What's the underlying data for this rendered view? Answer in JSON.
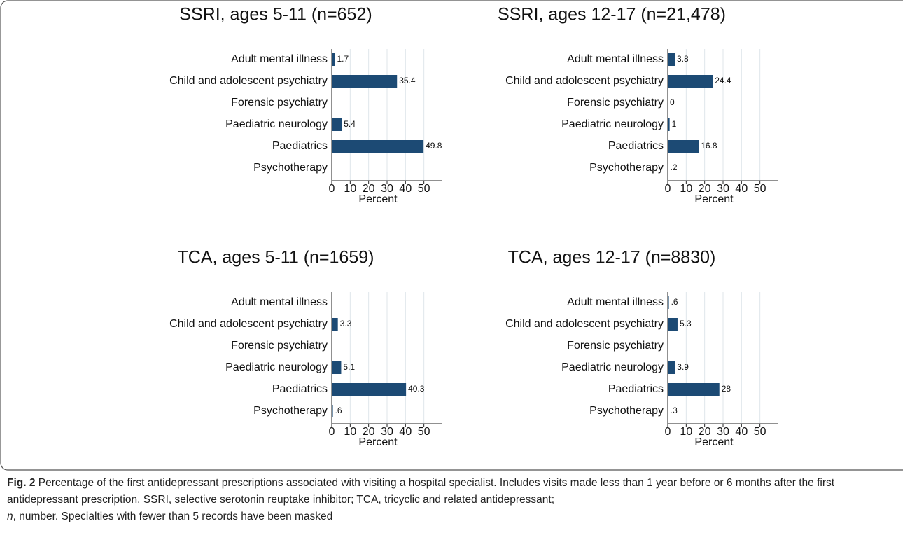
{
  "chart_data": [
    {
      "type": "bar",
      "orientation": "horizontal",
      "title": "SSRI, ages 5-11 (n=652)",
      "categories": [
        "Adult mental illness",
        "Child and adolescent psychiatry",
        "Forensic psychiatry",
        "Paediatric neurology",
        "Paediatrics",
        "Psychotherapy"
      ],
      "values": [
        1.7,
        35.4,
        null,
        5.4,
        49.8,
        null
      ],
      "value_labels": [
        "1.7",
        "35.4",
        null,
        "5.4",
        "49.8",
        null
      ],
      "color": "#1c4a74",
      "xlim": [
        0,
        60
      ],
      "xticks": [
        0,
        10,
        20,
        30,
        40,
        50
      ],
      "xlabel": "Percent",
      "grid": true
    },
    {
      "type": "bar",
      "orientation": "horizontal",
      "title": "SSRI, ages 12-17 (n=21,478)",
      "categories": [
        "Adult mental illness",
        "Child and adolescent psychiatry",
        "Forensic psychiatry",
        "Paediatric neurology",
        "Paediatrics",
        "Psychotherapy"
      ],
      "values": [
        3.8,
        24.4,
        0,
        1,
        16.8,
        0.2
      ],
      "value_labels": [
        "3.8",
        "24.4",
        "0",
        "1",
        "16.8",
        ".2"
      ],
      "color": "#1c4a74",
      "xlim": [
        0,
        60
      ],
      "xticks": [
        0,
        10,
        20,
        30,
        40,
        50
      ],
      "xlabel": "Percent",
      "grid": true
    },
    {
      "type": "bar",
      "orientation": "horizontal",
      "title": "TCA, ages 5-11 (n=1659)",
      "categories": [
        "Adult mental illness",
        "Child and adolescent psychiatry",
        "Forensic psychiatry",
        "Paediatric neurology",
        "Paediatrics",
        "Psychotherapy"
      ],
      "values": [
        null,
        3.3,
        null,
        5.1,
        40.3,
        0.6
      ],
      "value_labels": [
        null,
        "3.3",
        null,
        "5.1",
        "40.3",
        ".6"
      ],
      "color": "#1c4a74",
      "xlim": [
        0,
        60
      ],
      "xticks": [
        0,
        10,
        20,
        30,
        40,
        50
      ],
      "xlabel": "Percent",
      "grid": true
    },
    {
      "type": "bar",
      "orientation": "horizontal",
      "title": "TCA, ages 12-17 (n=8830)",
      "categories": [
        "Adult mental illness",
        "Child and adolescent psychiatry",
        "Forensic psychiatry",
        "Paediatric neurology",
        "Paediatrics",
        "Psychotherapy"
      ],
      "values": [
        0.6,
        5.3,
        null,
        3.9,
        28,
        0.3
      ],
      "value_labels": [
        ".6",
        "5.3",
        null,
        "3.9",
        "28",
        ".3"
      ],
      "color": "#1c4a74",
      "xlim": [
        0,
        60
      ],
      "xticks": [
        0,
        10,
        20,
        30,
        40,
        50
      ],
      "xlabel": "Percent",
      "grid": true
    }
  ],
  "caption": {
    "label": "Fig. 2",
    "parts": [
      "Percentage of the first antidepressant prescriptions associated with visiting a hospital specialist. Includes visits made less than 1 year before or 6 months after the first antidepressant prescription. SSRI, selective serotonin reuptake inhibitor; TCA, tricyclic and related antidepressant;",
      "n",
      ", number. Specialties with fewer than 5 records have been masked"
    ]
  }
}
